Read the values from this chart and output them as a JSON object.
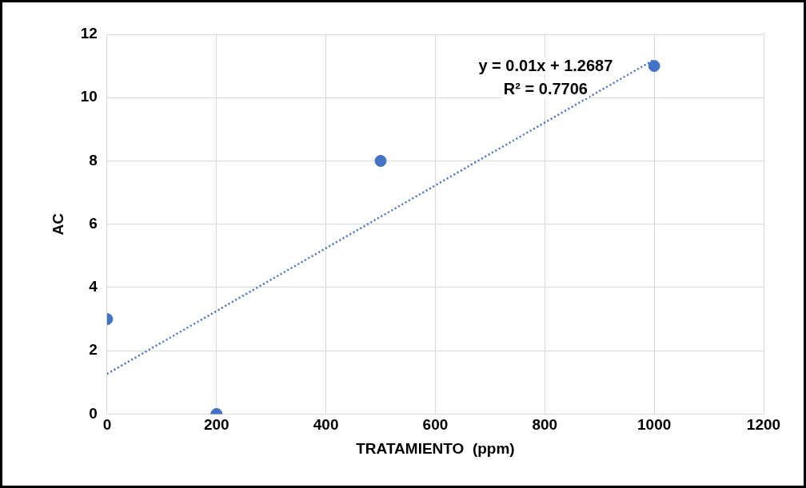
{
  "chart_data": {
    "type": "scatter",
    "xlabel": "TRATAMIENTO  (ppm)",
    "ylabel": "AC",
    "xlim": [
      0,
      1200
    ],
    "xticks": [
      0,
      200,
      400,
      600,
      800,
      1000,
      1200
    ],
    "ylim": [
      0,
      12
    ],
    "yticks": [
      0,
      2,
      4,
      6,
      8,
      10,
      12
    ],
    "grid": true,
    "marker": "circle",
    "series": [
      {
        "color": "#4472c4",
        "x": [
          0,
          200,
          500,
          1000
        ],
        "values": [
          3,
          0,
          8,
          11
        ]
      },
      {
        "type": "line",
        "color": "#4472c4",
        "line_style": "dotted",
        "marker": "none",
        "x": [
          0,
          1000
        ],
        "values": [
          1.27,
          11.2
        ]
      }
    ],
    "annotations": [
      "y = 0.01x + 1.2687",
      "R² = 0.7706"
    ]
  }
}
